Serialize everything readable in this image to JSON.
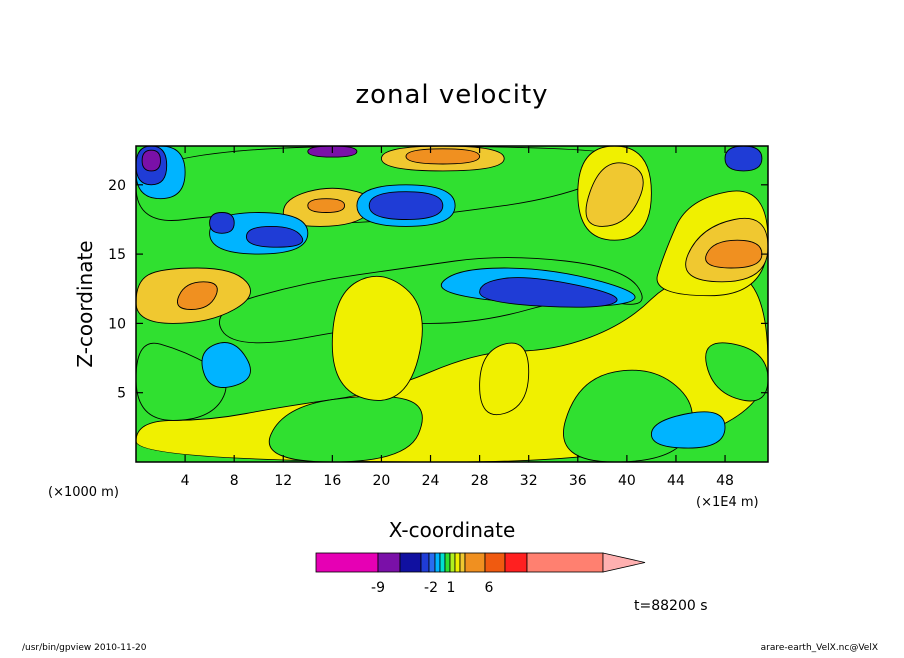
{
  "chart_data": {
    "type": "heatmap",
    "title": "zonal velocity",
    "xlabel": "X-coordinate",
    "ylabel": "Z-coordinate",
    "x_unit": "(×1E4 m)",
    "y_unit": "(×1000 m)",
    "xlim": [
      0,
      51.5
    ],
    "ylim": [
      0,
      22.8
    ],
    "x_ticks": [
      "4",
      "8",
      "12",
      "16",
      "20",
      "24",
      "28",
      "32",
      "36",
      "40",
      "44",
      "48"
    ],
    "y_ticks": [
      "5",
      "10",
      "15",
      "20"
    ],
    "x_tick_values": [
      4,
      8,
      12,
      16,
      20,
      24,
      28,
      32,
      36,
      40,
      44,
      48
    ],
    "y_tick_values": [
      5,
      10,
      15,
      20
    ],
    "colorbar": {
      "labels": [
        "-9",
        "-2",
        "1",
        "6"
      ],
      "colors": [
        "#e600b4",
        "#7a10a8",
        "#1010a0",
        "#1f3cd6",
        "#2a6cf0",
        "#00b4ff",
        "#00e0d0",
        "#30e030",
        "#b0f020",
        "#f0f000",
        "#f0c830",
        "#f09020",
        "#f05a10",
        "#ff2020",
        "#ff8070",
        "#ffb0b0"
      ]
    },
    "time_label": "t=88200 s",
    "regions": [
      {
        "level": "pos1",
        "points": [
          [
            0,
            0
          ],
          [
            51.5,
            0
          ],
          [
            51.5,
            14
          ],
          [
            44,
            13.5
          ],
          [
            40,
            10
          ],
          [
            34,
            8
          ],
          [
            28,
            8
          ],
          [
            20,
            5
          ],
          [
            12,
            4
          ],
          [
            6,
            3
          ],
          [
            0,
            3
          ]
        ]
      },
      {
        "level": "zero",
        "points": [
          [
            0,
            3
          ],
          [
            6,
            3
          ],
          [
            8,
            6
          ],
          [
            4,
            8
          ],
          [
            0,
            9
          ]
        ]
      },
      {
        "level": "zero",
        "points": [
          [
            10,
            0
          ],
          [
            22,
            0
          ],
          [
            24,
            4
          ],
          [
            20,
            5
          ],
          [
            12,
            4
          ]
        ]
      },
      {
        "level": "zero",
        "points": [
          [
            34,
            0
          ],
          [
            44,
            0
          ],
          [
            46,
            4
          ],
          [
            42,
            7
          ],
          [
            36,
            6
          ]
        ]
      },
      {
        "level": "zero",
        "points": [
          [
            8,
            8
          ],
          [
            20,
            10
          ],
          [
            28,
            10
          ],
          [
            36,
            12
          ],
          [
            42,
            11
          ],
          [
            40,
            14
          ],
          [
            30,
            15
          ],
          [
            22,
            14
          ],
          [
            14,
            13
          ],
          [
            6,
            11
          ]
        ]
      },
      {
        "level": "zero",
        "points": [
          [
            0,
            17
          ],
          [
            8,
            18
          ],
          [
            16,
            17
          ],
          [
            26,
            18
          ],
          [
            34,
            19
          ],
          [
            40,
            21
          ],
          [
            40,
            22.8
          ],
          [
            0,
            22.8
          ]
        ]
      },
      {
        "level": "zero",
        "points": [
          [
            46,
            9
          ],
          [
            51.5,
            8
          ],
          [
            51.5,
            4
          ],
          [
            47,
            5
          ]
        ]
      },
      {
        "level": "pos1",
        "points": [
          [
            16,
            5
          ],
          [
            22,
            4
          ],
          [
            24,
            11
          ],
          [
            20,
            14
          ],
          [
            16,
            12
          ]
        ]
      },
      {
        "level": "pos1",
        "points": [
          [
            28,
            3
          ],
          [
            32,
            4
          ],
          [
            32,
            9
          ],
          [
            28,
            8
          ]
        ]
      },
      {
        "level": "pos1",
        "points": [
          [
            42,
            12
          ],
          [
            51.5,
            12
          ],
          [
            51.5,
            20
          ],
          [
            45,
            19
          ],
          [
            43,
            15
          ]
        ]
      },
      {
        "level": "pos1",
        "points": [
          [
            36,
            16
          ],
          [
            42,
            16
          ],
          [
            42,
            22.8
          ],
          [
            36,
            22.8
          ]
        ]
      },
      {
        "level": "pos2",
        "points": [
          [
            0,
            10
          ],
          [
            6,
            10
          ],
          [
            10,
            12
          ],
          [
            8,
            14
          ],
          [
            2,
            14
          ],
          [
            0,
            13
          ]
        ]
      },
      {
        "level": "pos2",
        "points": [
          [
            44,
            13
          ],
          [
            51.5,
            13
          ],
          [
            51.5,
            18
          ],
          [
            46,
            17
          ]
        ]
      },
      {
        "level": "pos2",
        "points": [
          [
            12,
            17
          ],
          [
            18,
            17
          ],
          [
            20,
            19
          ],
          [
            16,
            20
          ],
          [
            12,
            19
          ]
        ]
      },
      {
        "level": "pos2",
        "points": [
          [
            20,
            21
          ],
          [
            30,
            21
          ],
          [
            30,
            22.8
          ],
          [
            20,
            22.8
          ]
        ]
      },
      {
        "level": "pos2",
        "points": [
          [
            36,
            17
          ],
          [
            40,
            17
          ],
          [
            42,
            21
          ],
          [
            38,
            22
          ]
        ]
      },
      {
        "level": "pos3",
        "points": [
          [
            3,
            11
          ],
          [
            6,
            11
          ],
          [
            7,
            13
          ],
          [
            4,
            13
          ]
        ]
      },
      {
        "level": "pos3",
        "points": [
          [
            14,
            18
          ],
          [
            17,
            18
          ],
          [
            17,
            19
          ],
          [
            14,
            19
          ]
        ]
      },
      {
        "level": "pos3",
        "points": [
          [
            46,
            14
          ],
          [
            51,
            14
          ],
          [
            51,
            16
          ],
          [
            47,
            16
          ]
        ]
      },
      {
        "level": "pos3",
        "points": [
          [
            22,
            21.5
          ],
          [
            28,
            21.5
          ],
          [
            28,
            22.6
          ],
          [
            22,
            22.6
          ]
        ]
      },
      {
        "level": "neg1",
        "points": [
          [
            6,
            5
          ],
          [
            10,
            6
          ],
          [
            8,
            9
          ],
          [
            5,
            8
          ]
        ]
      },
      {
        "level": "neg1",
        "points": [
          [
            24,
            12
          ],
          [
            38,
            11
          ],
          [
            42,
            12
          ],
          [
            34,
            14
          ],
          [
            26,
            14
          ]
        ]
      },
      {
        "level": "neg1",
        "points": [
          [
            6,
            15
          ],
          [
            14,
            15
          ],
          [
            14,
            18
          ],
          [
            6,
            18
          ]
        ]
      },
      {
        "level": "neg1",
        "points": [
          [
            18,
            17
          ],
          [
            26,
            17
          ],
          [
            26,
            20
          ],
          [
            18,
            20
          ]
        ]
      },
      {
        "level": "neg1",
        "points": [
          [
            42,
            1
          ],
          [
            48,
            1
          ],
          [
            48,
            4
          ],
          [
            42,
            3
          ]
        ]
      },
      {
        "level": "neg1",
        "points": [
          [
            0,
            19
          ],
          [
            4,
            19
          ],
          [
            4,
            22.8
          ],
          [
            0,
            22.8
          ]
        ]
      },
      {
        "level": "neg2",
        "points": [
          [
            28,
            11.5
          ],
          [
            38,
            11
          ],
          [
            40,
            12
          ],
          [
            32,
            13.5
          ],
          [
            28,
            13
          ]
        ]
      },
      {
        "level": "neg2",
        "points": [
          [
            9,
            15.5
          ],
          [
            14,
            15.5
          ],
          [
            13,
            17
          ],
          [
            9,
            17
          ]
        ]
      },
      {
        "level": "neg2",
        "points": [
          [
            19,
            17.5
          ],
          [
            25,
            17.5
          ],
          [
            25,
            19.5
          ],
          [
            19,
            19.5
          ]
        ]
      },
      {
        "level": "neg2",
        "points": [
          [
            6,
            16.5
          ],
          [
            8,
            16.5
          ],
          [
            8,
            18
          ],
          [
            6,
            18
          ]
        ]
      },
      {
        "level": "neg2",
        "points": [
          [
            48,
            21
          ],
          [
            51,
            21
          ],
          [
            51,
            22.8
          ],
          [
            48,
            22.8
          ]
        ]
      },
      {
        "level": "neg2",
        "points": [
          [
            0,
            20
          ],
          [
            2.5,
            20
          ],
          [
            2.5,
            22.8
          ],
          [
            0,
            22.8
          ]
        ]
      },
      {
        "level": "neg3",
        "points": [
          [
            14,
            22
          ],
          [
            18,
            22
          ],
          [
            18,
            22.8
          ],
          [
            14,
            22.8
          ]
        ]
      },
      {
        "level": "neg3",
        "points": [
          [
            0.5,
            21
          ],
          [
            2,
            21
          ],
          [
            2,
            22.5
          ],
          [
            0.5,
            22.5
          ]
        ]
      }
    ]
  },
  "footer": {
    "left": "/usr/bin/gpview   2010-11-20",
    "right": "arare-earth_VelX.nc@VelX"
  }
}
